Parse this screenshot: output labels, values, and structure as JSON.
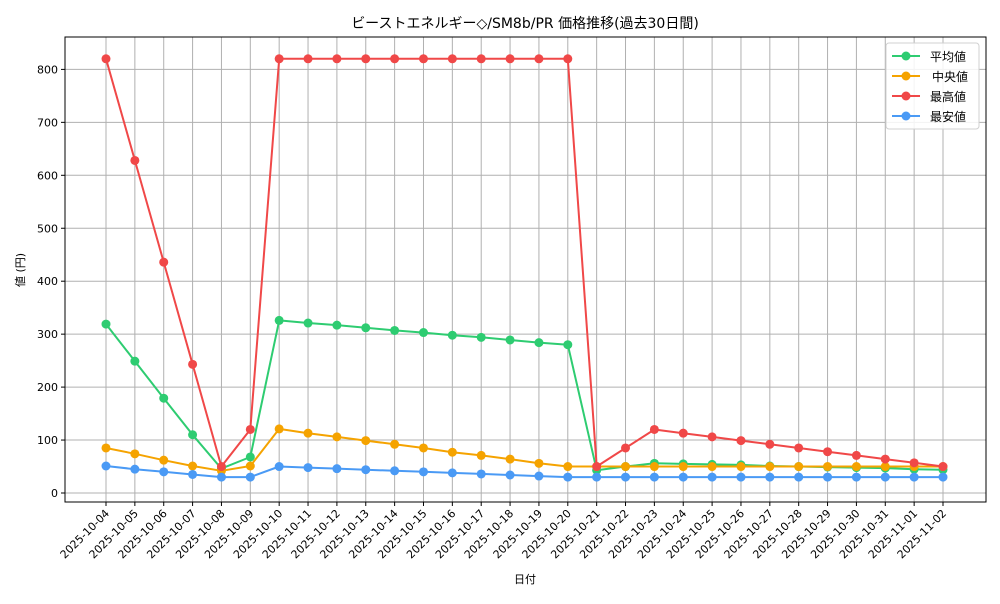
{
  "chart_data": {
    "type": "line",
    "title": "ビーストエネルギー◇/SM8b/PR 価格推移(過去30日間)",
    "xlabel": "日付",
    "ylabel": "値 (円)",
    "ylim": [
      -10,
      860
    ],
    "yticks": [
      0,
      100,
      200,
      300,
      400,
      500,
      600,
      700,
      800
    ],
    "grid": true,
    "legend_position": "upper right",
    "categories": [
      "2025-10-04",
      "2025-10-05",
      "2025-10-06",
      "2025-10-07",
      "2025-10-08",
      "2025-10-09",
      "2025-10-10",
      "2025-10-11",
      "2025-10-12",
      "2025-10-13",
      "2025-10-14",
      "2025-10-15",
      "2025-10-16",
      "2025-10-17",
      "2025-10-18",
      "2025-10-19",
      "2025-10-20",
      "2025-10-21",
      "2025-10-22",
      "2025-10-23",
      "2025-10-24",
      "2025-10-25",
      "2025-10-26",
      "2025-10-27",
      "2025-10-28",
      "2025-10-29",
      "2025-10-30",
      "2025-10-31",
      "2025-11-01",
      "2025-11-02"
    ],
    "series": [
      {
        "name": "平均値",
        "color": "#2ecc71",
        "values": [
          319,
          249,
          179,
          110,
          46,
          68,
          326,
          321,
          317,
          312,
          307,
          303,
          298,
          294,
          289,
          284,
          280,
          43,
          50,
          56,
          55,
          54,
          53,
          51,
          50,
          49,
          48,
          47,
          45,
          44
        ]
      },
      {
        "name": "中央値",
        "color": "#f5a300",
        "values": [
          85,
          74,
          62,
          51,
          42,
          51,
          121,
          113,
          106,
          99,
          92,
          85,
          77,
          71,
          64,
          56,
          50,
          50,
          50,
          50,
          50,
          50,
          50,
          50,
          50,
          50,
          50,
          50,
          50,
          50
        ]
      },
      {
        "name": "最高値",
        "color": "#f04848",
        "values": [
          820,
          628,
          436,
          243,
          50,
          120,
          820,
          820,
          820,
          820,
          820,
          820,
          820,
          820,
          820,
          820,
          820,
          50,
          85,
          120,
          113,
          106,
          99,
          92,
          85,
          78,
          71,
          64,
          57,
          50
        ]
      },
      {
        "name": "最安値",
        "color": "#4a9af5",
        "values": [
          51,
          45,
          40,
          35,
          30,
          30,
          50,
          48,
          46,
          44,
          42,
          40,
          38,
          36,
          34,
          32,
          30,
          30,
          30,
          30,
          30,
          30,
          30,
          30,
          30,
          30,
          30,
          30,
          30,
          30
        ]
      }
    ]
  }
}
